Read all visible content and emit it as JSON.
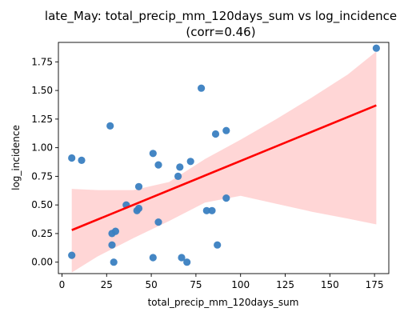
{
  "chart_data": {
    "type": "scatter",
    "title": "late_May: total_precip_mm_120days_sum vs log_incidence",
    "subtitle": "(corr=0.46)",
    "xlabel": "total_precip_mm_120days_sum",
    "ylabel": "log_incidence",
    "xlim": [
      -2,
      183
    ],
    "ylim": [
      -0.1,
      1.92
    ],
    "xticks": [
      0,
      25,
      50,
      75,
      100,
      125,
      150,
      175
    ],
    "yticks": [
      0.0,
      0.25,
      0.5,
      0.75,
      1.0,
      1.25,
      1.5,
      1.75
    ],
    "ytick_labels": [
      "0.00",
      "0.25",
      "0.50",
      "0.75",
      "1.00",
      "1.25",
      "1.50",
      "1.75"
    ],
    "grid": false,
    "series": [
      {
        "kind": "points",
        "color": "#3a7fc1",
        "x": [
          5.5,
          5.5,
          11,
          27,
          28,
          28,
          29,
          30,
          36,
          42,
          43,
          43,
          51,
          51,
          54,
          54,
          65,
          66,
          67,
          70,
          72,
          78,
          81,
          84,
          86,
          87,
          92,
          92,
          176
        ],
        "y": [
          0.06,
          0.91,
          0.89,
          1.19,
          0.25,
          0.15,
          0.0,
          0.27,
          0.5,
          0.45,
          0.47,
          0.66,
          0.04,
          0.95,
          0.85,
          0.35,
          0.75,
          0.83,
          0.04,
          0.0,
          0.88,
          1.52,
          0.45,
          0.45,
          1.12,
          0.15,
          1.15,
          0.56,
          1.87
        ]
      },
      {
        "kind": "regression",
        "color": "#ff0000",
        "x": [
          5.5,
          176
        ],
        "y": [
          0.28,
          1.37
        ]
      },
      {
        "kind": "confidence-band",
        "color": "#ffc0c0",
        "x": [
          5.5,
          20,
          40,
          60,
          80,
          100,
          120,
          140,
          160,
          176
        ],
        "upper": [
          0.64,
          0.63,
          0.63,
          0.7,
          0.9,
          1.07,
          1.25,
          1.44,
          1.64,
          1.84
        ],
        "lower": [
          -0.09,
          0.05,
          0.21,
          0.36,
          0.52,
          0.58,
          0.51,
          0.44,
          0.38,
          0.33
        ]
      }
    ]
  }
}
